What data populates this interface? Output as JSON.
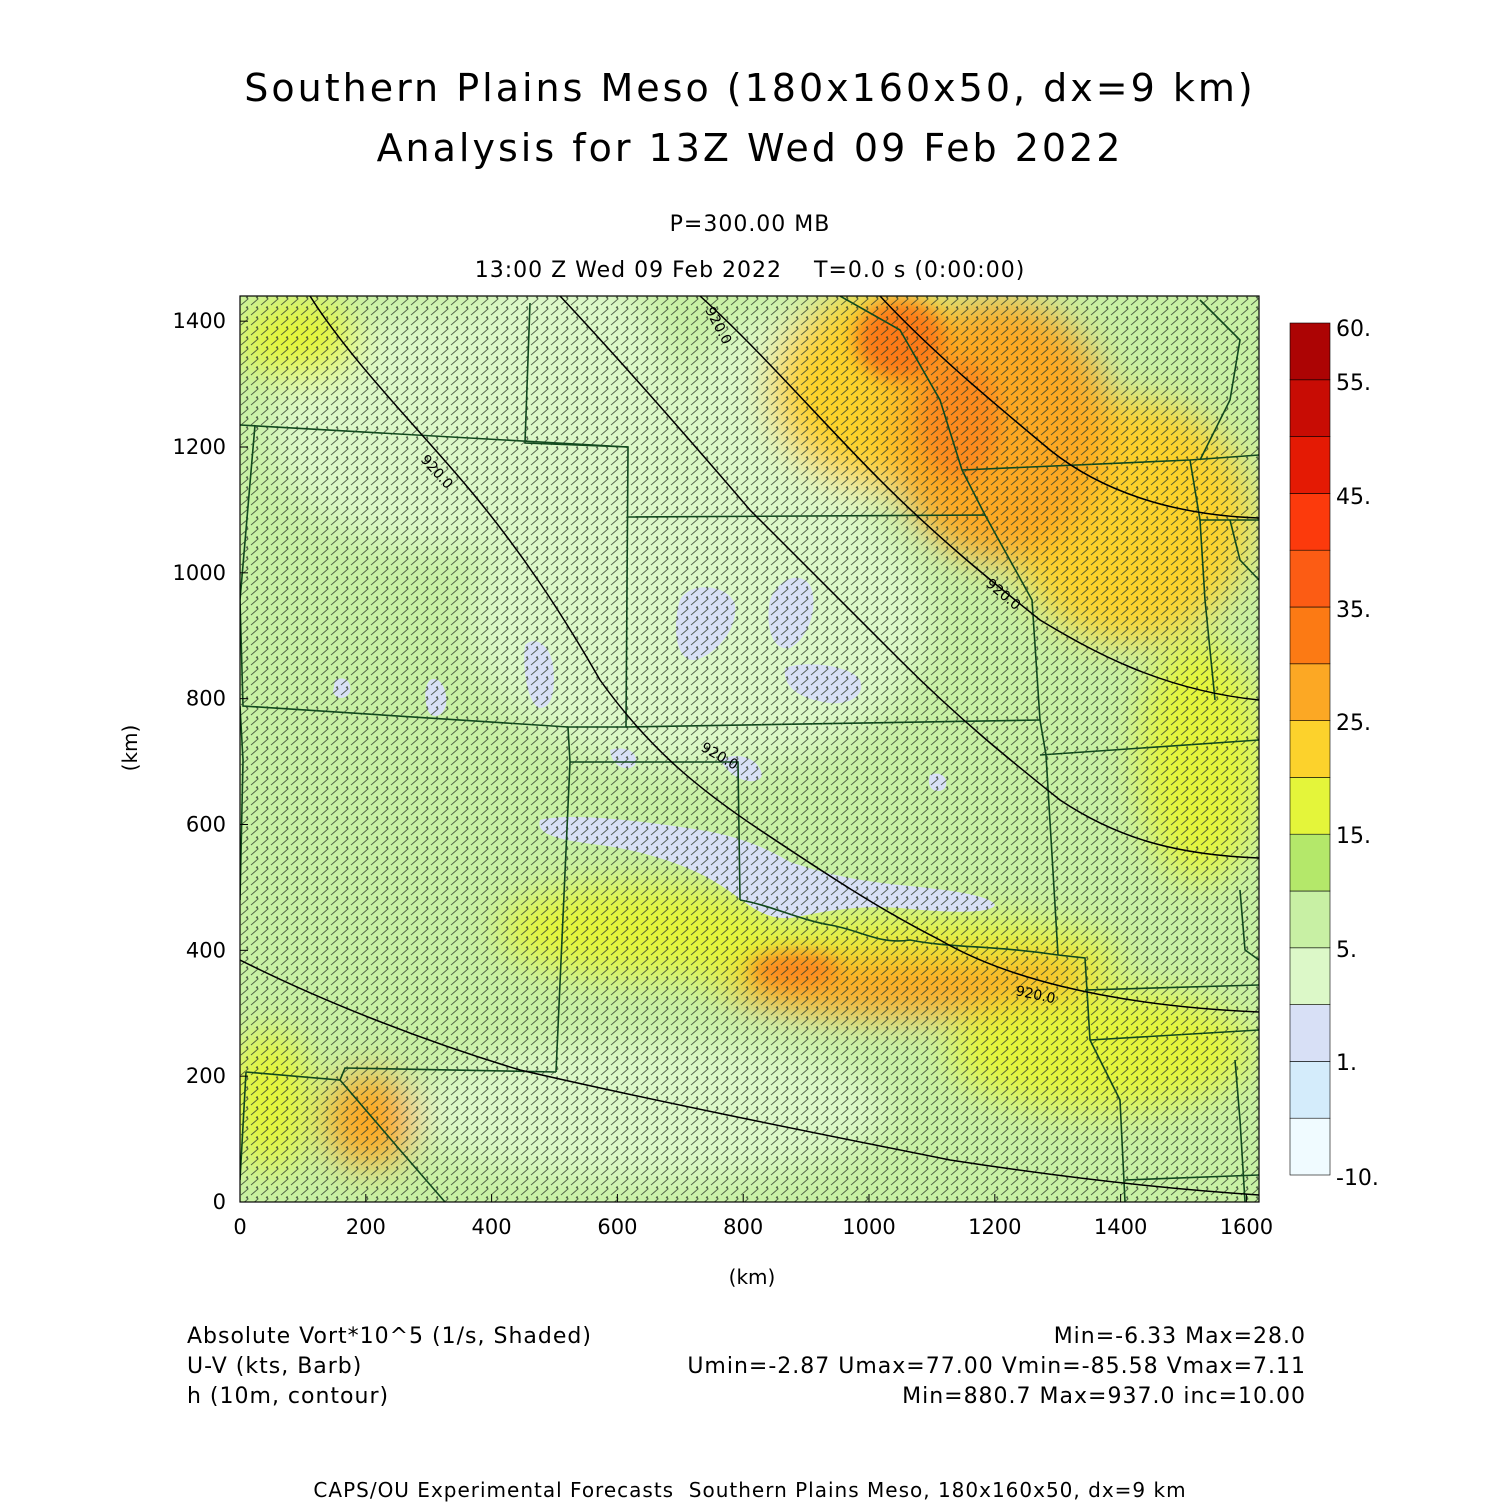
{
  "header": {
    "title_line1": "Southern Plains Meso (180x160x50, dx=9 km)",
    "title_line2": "Analysis for 13Z Wed 09 Feb 2022",
    "level": "P=300.00 MB",
    "time": "13:00 Z Wed 09 Feb 2022    T=0.0 s (0:00:00)"
  },
  "axes": {
    "x_label": "(km)",
    "y_label": "(km)",
    "x_ticks": [
      "0",
      "200",
      "400",
      "600",
      "800",
      "1000",
      "1200",
      "1400",
      "1600"
    ],
    "y_ticks": [
      "0",
      "200",
      "400",
      "600",
      "800",
      "1000",
      "1200",
      "1400"
    ],
    "x_range": [
      0,
      1620
    ],
    "y_range": [
      0,
      1440
    ]
  },
  "colorbar": {
    "labels": [
      "60.",
      "55.",
      "45.",
      "35.",
      "25.",
      "15.",
      "5.",
      "1.",
      "-10."
    ],
    "colors": [
      "#f0fbff",
      "#d4ecfb",
      "#d8e0f6",
      "#dcf8c8",
      "#c8f0a4",
      "#b4e86a",
      "#e4f53a",
      "#fcd22c",
      "#fca824",
      "#fc7a14",
      "#fc5c14",
      "#fc3a0c",
      "#e41a04",
      "#c80c04",
      "#ac0404"
    ]
  },
  "contours": {
    "labels": [
      "920.0",
      "920.0",
      "920.0",
      "920.0",
      "920.0"
    ]
  },
  "legend": {
    "line1_left": "Absolute Vort*10^5 (1/s, Shaded)",
    "line1_right": "Min=-6.33 Max=28.0",
    "line2_left": "U-V (kts, Barb)",
    "line2_right": "Umin=-2.87 Umax=77.00 Vmin=-85.58 Vmax=7.11",
    "line3_left": "h (10m, contour)",
    "line3_right": "Min=880.7 Max=937.0 inc=10.00"
  },
  "footer": "CAPS/OU Experimental Forecasts  Southern Plains Meso, 180x160x50, dx=9 km"
}
